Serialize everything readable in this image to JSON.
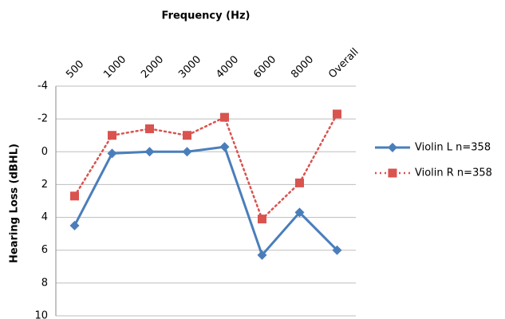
{
  "chart_data": {
    "type": "line",
    "title": "Frequency (Hz)",
    "y_label": "Hearing Loss (dBHL)",
    "categories": [
      "500",
      "1000",
      "2000",
      "3000",
      "4000",
      "6000",
      "8000",
      "Overall"
    ],
    "series": [
      {
        "name": "Violin L n=358",
        "color": "#4a7ebb",
        "marker": "diamond",
        "dash": "solid",
        "values": [
          4.5,
          0.1,
          0,
          0,
          -0.3,
          6.3,
          3.7,
          6.0
        ]
      },
      {
        "name": "Violin R n=358",
        "color": "#d9534f",
        "marker": "square",
        "dash": "dotted",
        "values": [
          2.7,
          -1.0,
          -1.4,
          -1.0,
          -2.1,
          4.1,
          1.9,
          -2.3
        ]
      }
    ],
    "ylim": [
      -4,
      10
    ],
    "y_inverted": true,
    "yticks": [
      -4,
      -2,
      0,
      2,
      4,
      6,
      8,
      10
    ],
    "grid": true,
    "legend": "right"
  }
}
